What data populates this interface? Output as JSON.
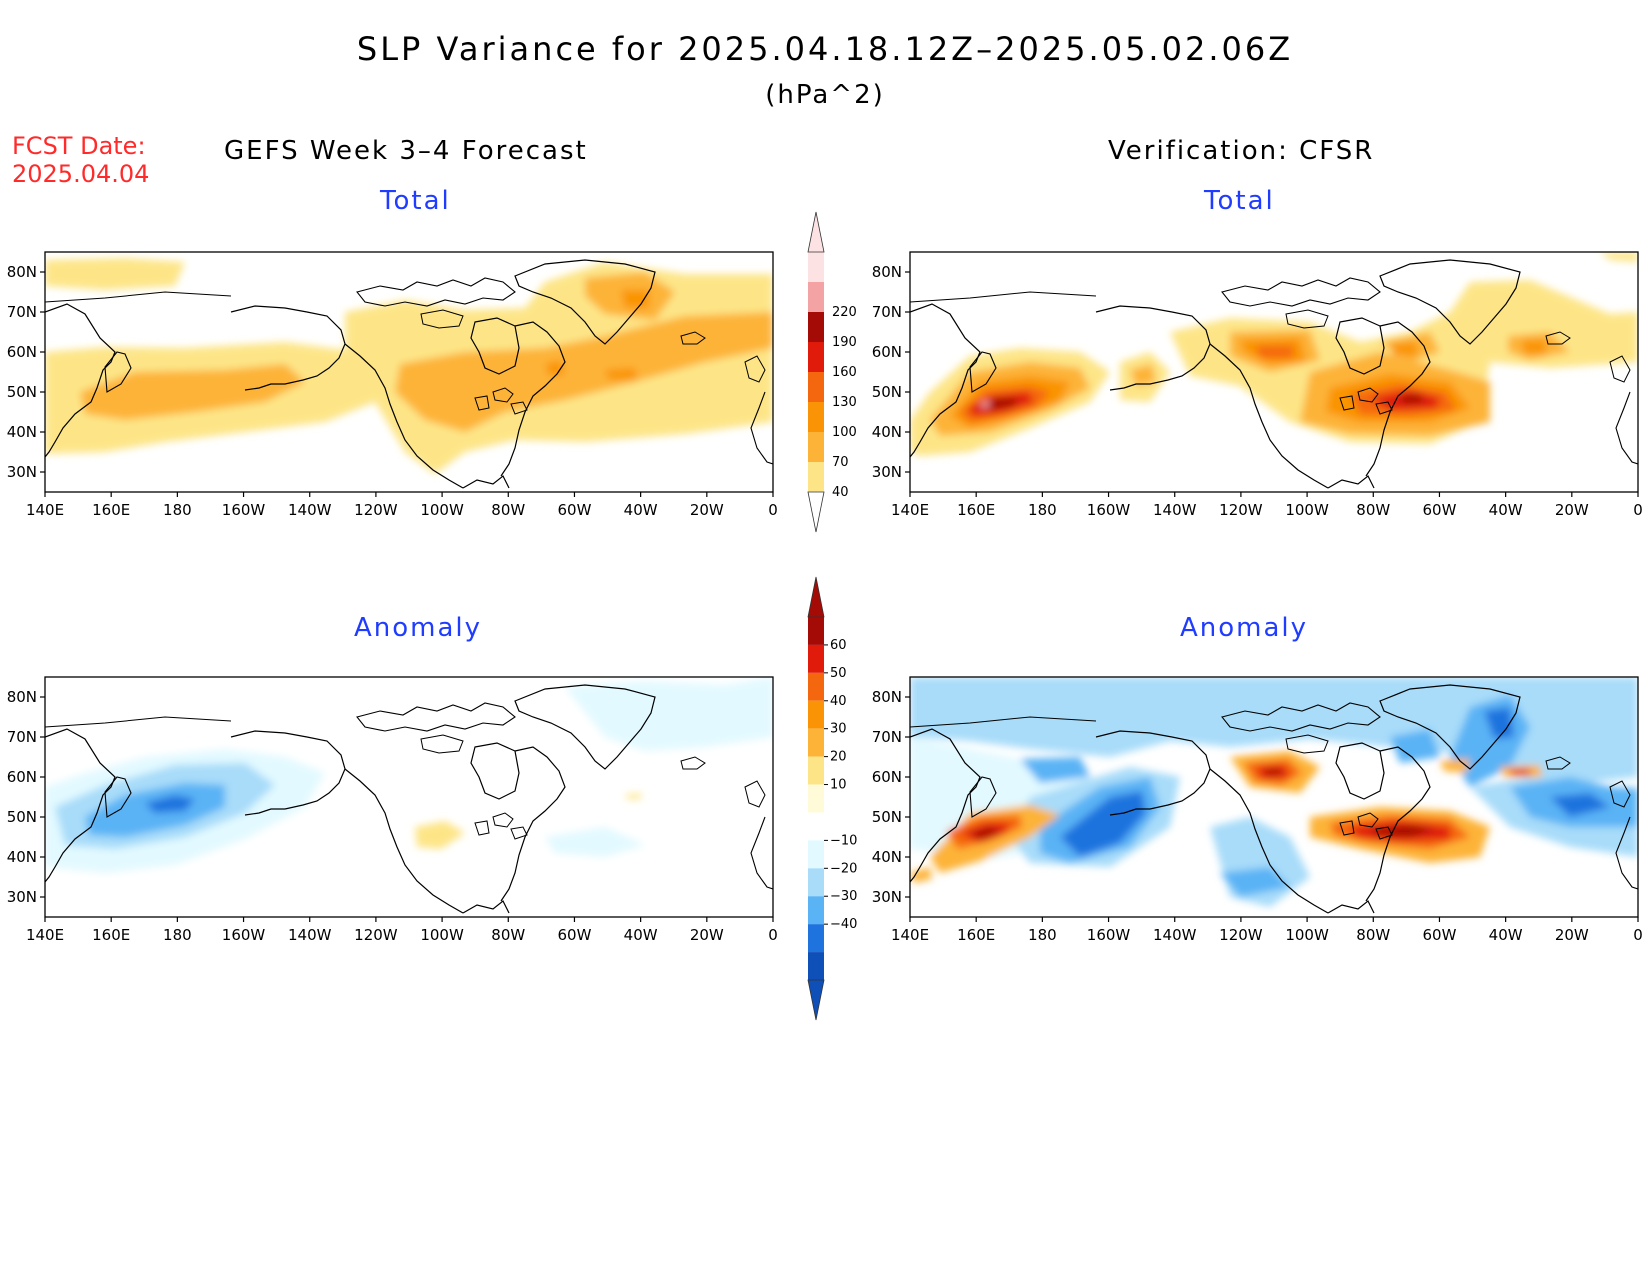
{
  "title": "SLP Variance for 2025.04.18.12Z–2025.05.02.06Z",
  "units": "(hPa^2)",
  "fcst": {
    "line1": "FCST Date:",
    "line2": "2025.04.04"
  },
  "left_header": "GEFS Week 3–4 Forecast",
  "right_header": "Verification: CFSR",
  "panel_titles": {
    "tl": "Total",
    "tr": "Total",
    "bl": "Anomaly",
    "br": "Anomaly"
  },
  "lat_labels": [
    "80N",
    "70N",
    "60N",
    "50N",
    "40N",
    "30N"
  ],
  "lon_labels": [
    "140E",
    "160E",
    "180",
    "160W",
    "140W",
    "120W",
    "100W",
    "80W",
    "60W",
    "40W",
    "20W",
    "0"
  ],
  "total_colorbar": {
    "levels": [
      "40",
      "70",
      "100",
      "130",
      "160",
      "190",
      "220"
    ],
    "colors": [
      "#fde587",
      "#fdb338",
      "#fa9406",
      "#f5670f",
      "#e01b0c",
      "#a40b06",
      "#f3a3a4",
      "#fde2e4"
    ]
  },
  "anomaly_colorbar": {
    "levels": [
      "60",
      "50",
      "40",
      "30",
      "20",
      "10",
      "−10",
      "−20",
      "−30",
      "−40"
    ],
    "colors": [
      "#a40b06",
      "#e01b0c",
      "#f5670f",
      "#fa9406",
      "#fdb338",
      "#fde587",
      "#fffbd8",
      "#ffffff",
      "#e2f9ff",
      "#a8dcf9",
      "#5ab3f5",
      "#1e73de",
      "#0e4fb8"
    ]
  },
  "colors": {
    "title": "#000000",
    "fcst": "#ff2a2a",
    "panel_title": "#1f3cff"
  },
  "chart_data": [
    {
      "panel": "GEFS Week 3–4 Forecast - Total",
      "type": "heatmap",
      "variable": "SLP variance (hPa^2)",
      "x_range": [
        "140E",
        "0"
      ],
      "y_range": [
        "25N",
        "85N"
      ],
      "features": [
        {
          "region": "North Pacific (~165E–150W, 40–55N)",
          "value_range": [
            70,
            100
          ]
        },
        {
          "region": "Central/Eastern Canada & Great Lakes (~100W–55W, 40–60N)",
          "value_range": [
            70,
            100
          ]
        },
        {
          "region": "Greenland (~40W, 70N)",
          "value_range": [
            100,
            130
          ]
        },
        {
          "region": "North Atlantic (~50W–0, 50–60N)",
          "value_range": [
            70,
            100
          ]
        }
      ]
    },
    {
      "panel": "Verification: CFSR - Total",
      "type": "heatmap",
      "variable": "SLP variance (hPa^2)",
      "x_range": [
        "140E",
        "0"
      ],
      "y_range": [
        "25N",
        "85N"
      ],
      "features": [
        {
          "region": "NW Pacific (~160E–175E, 45–50N)",
          "value_range": [
            190,
            220
          ]
        },
        {
          "region": "Hudson Bay / Central Canada (~110W, 60N)",
          "value_range": [
            130,
            160
          ]
        },
        {
          "region": "Great Lakes to NW Atlantic (~85W–50W, 45–50N)",
          "value_range": [
            160,
            190
          ]
        },
        {
          "region": "Gulf of Alaska (~140W, 55N)",
          "value_range": [
            70,
            100
          ]
        }
      ]
    },
    {
      "panel": "GEFS Week 3–4 Forecast - Anomaly",
      "type": "heatmap",
      "variable": "SLP variance anomaly (hPa^2)",
      "x_range": [
        "140E",
        "0"
      ],
      "y_range": [
        "25N",
        "85N"
      ],
      "features": [
        {
          "region": "North Pacific (~160E–170W, 45–60N)",
          "value_range": [
            -40,
            -30
          ]
        },
        {
          "region": "Central US (~100W, 40N)",
          "value_range": [
            10,
            20
          ]
        }
      ]
    },
    {
      "panel": "Verification: CFSR - Anomaly",
      "type": "heatmap",
      "variable": "SLP variance anomaly (hPa^2)",
      "x_range": [
        "140E",
        "0"
      ],
      "y_range": [
        "25N",
        "85N"
      ],
      "features": [
        {
          "region": "NW Pacific (~160E–180, 45–50N)",
          "value_range": [
            50,
            60
          ]
        },
        {
          "region": "Central Pacific (~165W, 45N)",
          "value_range": [
            -40,
            -30
          ]
        },
        {
          "region": "Hudson Bay (~110W, 60N)",
          "value_range": [
            50,
            60
          ]
        },
        {
          "region": "Great Lakes to NW Atlantic (~80W–50W, 45–50N)",
          "value_range": [
            50,
            60
          ]
        },
        {
          "region": "Greenland / Arctic (~50W–30W, 65–75N)",
          "value_range": [
            -40,
            -30
          ]
        }
      ]
    }
  ]
}
